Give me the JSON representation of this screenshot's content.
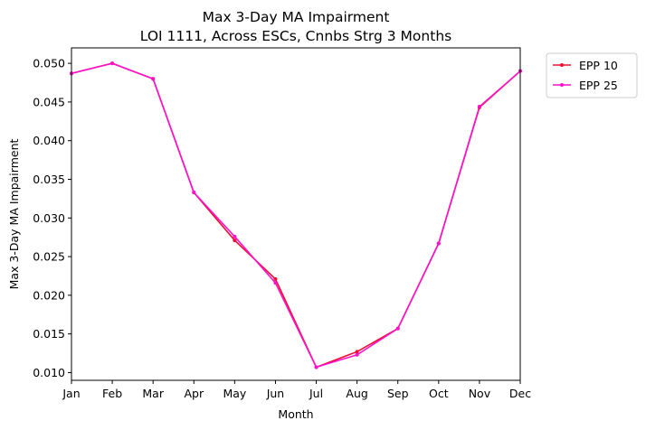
{
  "chart_data": {
    "type": "line",
    "title": "Max 3-Day MA Impairment",
    "subtitle": "LOI 1111, Across ESCs, Cnnbs Strg 3 Months",
    "xlabel": "Month",
    "ylabel": "Max 3-Day MA Impairment",
    "categories": [
      "Jan",
      "Feb",
      "Mar",
      "Apr",
      "May",
      "Jun",
      "Jul",
      "Aug",
      "Sep",
      "Oct",
      "Nov",
      "Dec"
    ],
    "ylim": [
      0.009,
      0.052
    ],
    "yticks": [
      "0.010",
      "0.015",
      "0.020",
      "0.025",
      "0.030",
      "0.035",
      "0.040",
      "0.045",
      "0.050"
    ],
    "grid": false,
    "legend_position": "outside-top-right",
    "series": [
      {
        "name": "EPP 10",
        "color": "#ee1133",
        "marker": "circle",
        "values": [
          0.0487,
          0.05,
          0.048,
          0.0333,
          0.0271,
          0.0221,
          0.0107,
          0.0127,
          0.0157,
          0.0267,
          0.0443,
          0.049
        ]
      },
      {
        "name": "EPP 25",
        "color": "#ff11cc",
        "marker": "circle",
        "values": [
          0.0487,
          0.05,
          0.048,
          0.0333,
          0.0276,
          0.0216,
          0.0107,
          0.0123,
          0.0157,
          0.0267,
          0.0444,
          0.049
        ]
      }
    ]
  }
}
